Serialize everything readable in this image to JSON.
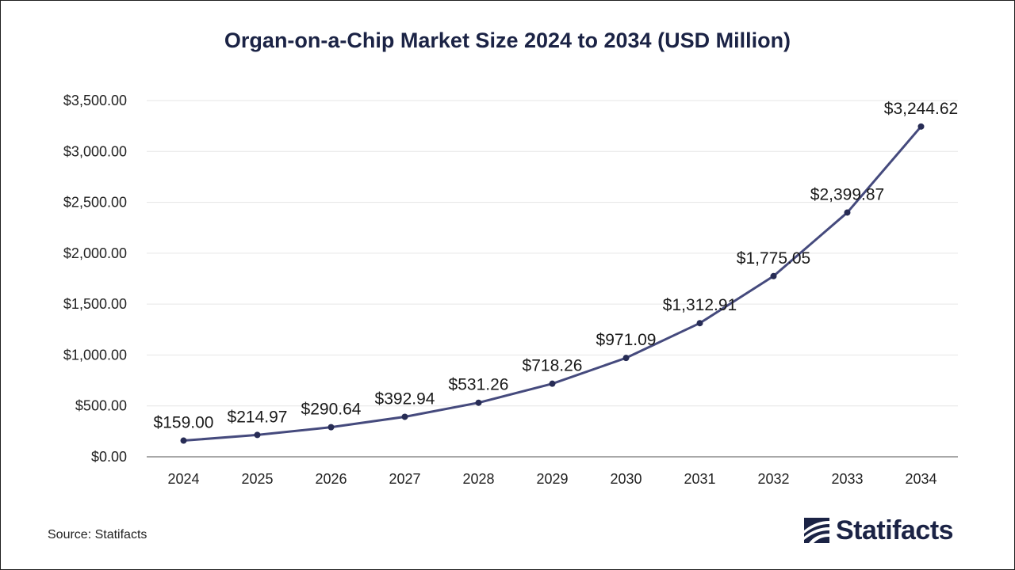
{
  "title": "Organ-on-a-Chip Market Size 2024 to 2034 (USD Million)",
  "source": "Source: Statifacts",
  "brand": "Statifacts",
  "colors": {
    "line": "#454a7d",
    "marker": "#272c55",
    "grid": "#e6e6e6",
    "axis": "#8c8c8c",
    "title": "#1b2345"
  },
  "chart_data": {
    "type": "line",
    "title": "Organ-on-a-Chip Market Size 2024 to 2034 (USD Million)",
    "categories": [
      "2024",
      "2025",
      "2026",
      "2027",
      "2028",
      "2029",
      "2030",
      "2031",
      "2032",
      "2033",
      "2034"
    ],
    "values": [
      159.0,
      214.97,
      290.64,
      392.94,
      531.26,
      718.26,
      971.09,
      1312.91,
      1775.05,
      2399.87,
      3244.62
    ],
    "data_labels": [
      "$159.00",
      "$214.97",
      "$290.64",
      "$392.94",
      "$531.26",
      "$718.26",
      "$971.09",
      "$1,312.91",
      "$1,775.05",
      "$2,399.87",
      "$3,244.62"
    ],
    "y_ticks": [
      0,
      500,
      1000,
      1500,
      2000,
      2500,
      3000,
      3500
    ],
    "y_tick_labels": [
      "$0.00",
      "$500.00",
      "$1,000.00",
      "$1,500.00",
      "$2,000.00",
      "$2,500.00",
      "$3,000.00",
      "$3,500.00"
    ],
    "ylim": [
      0,
      3500
    ],
    "xlabel": "",
    "ylabel": "",
    "grid": true,
    "legend": "none"
  }
}
